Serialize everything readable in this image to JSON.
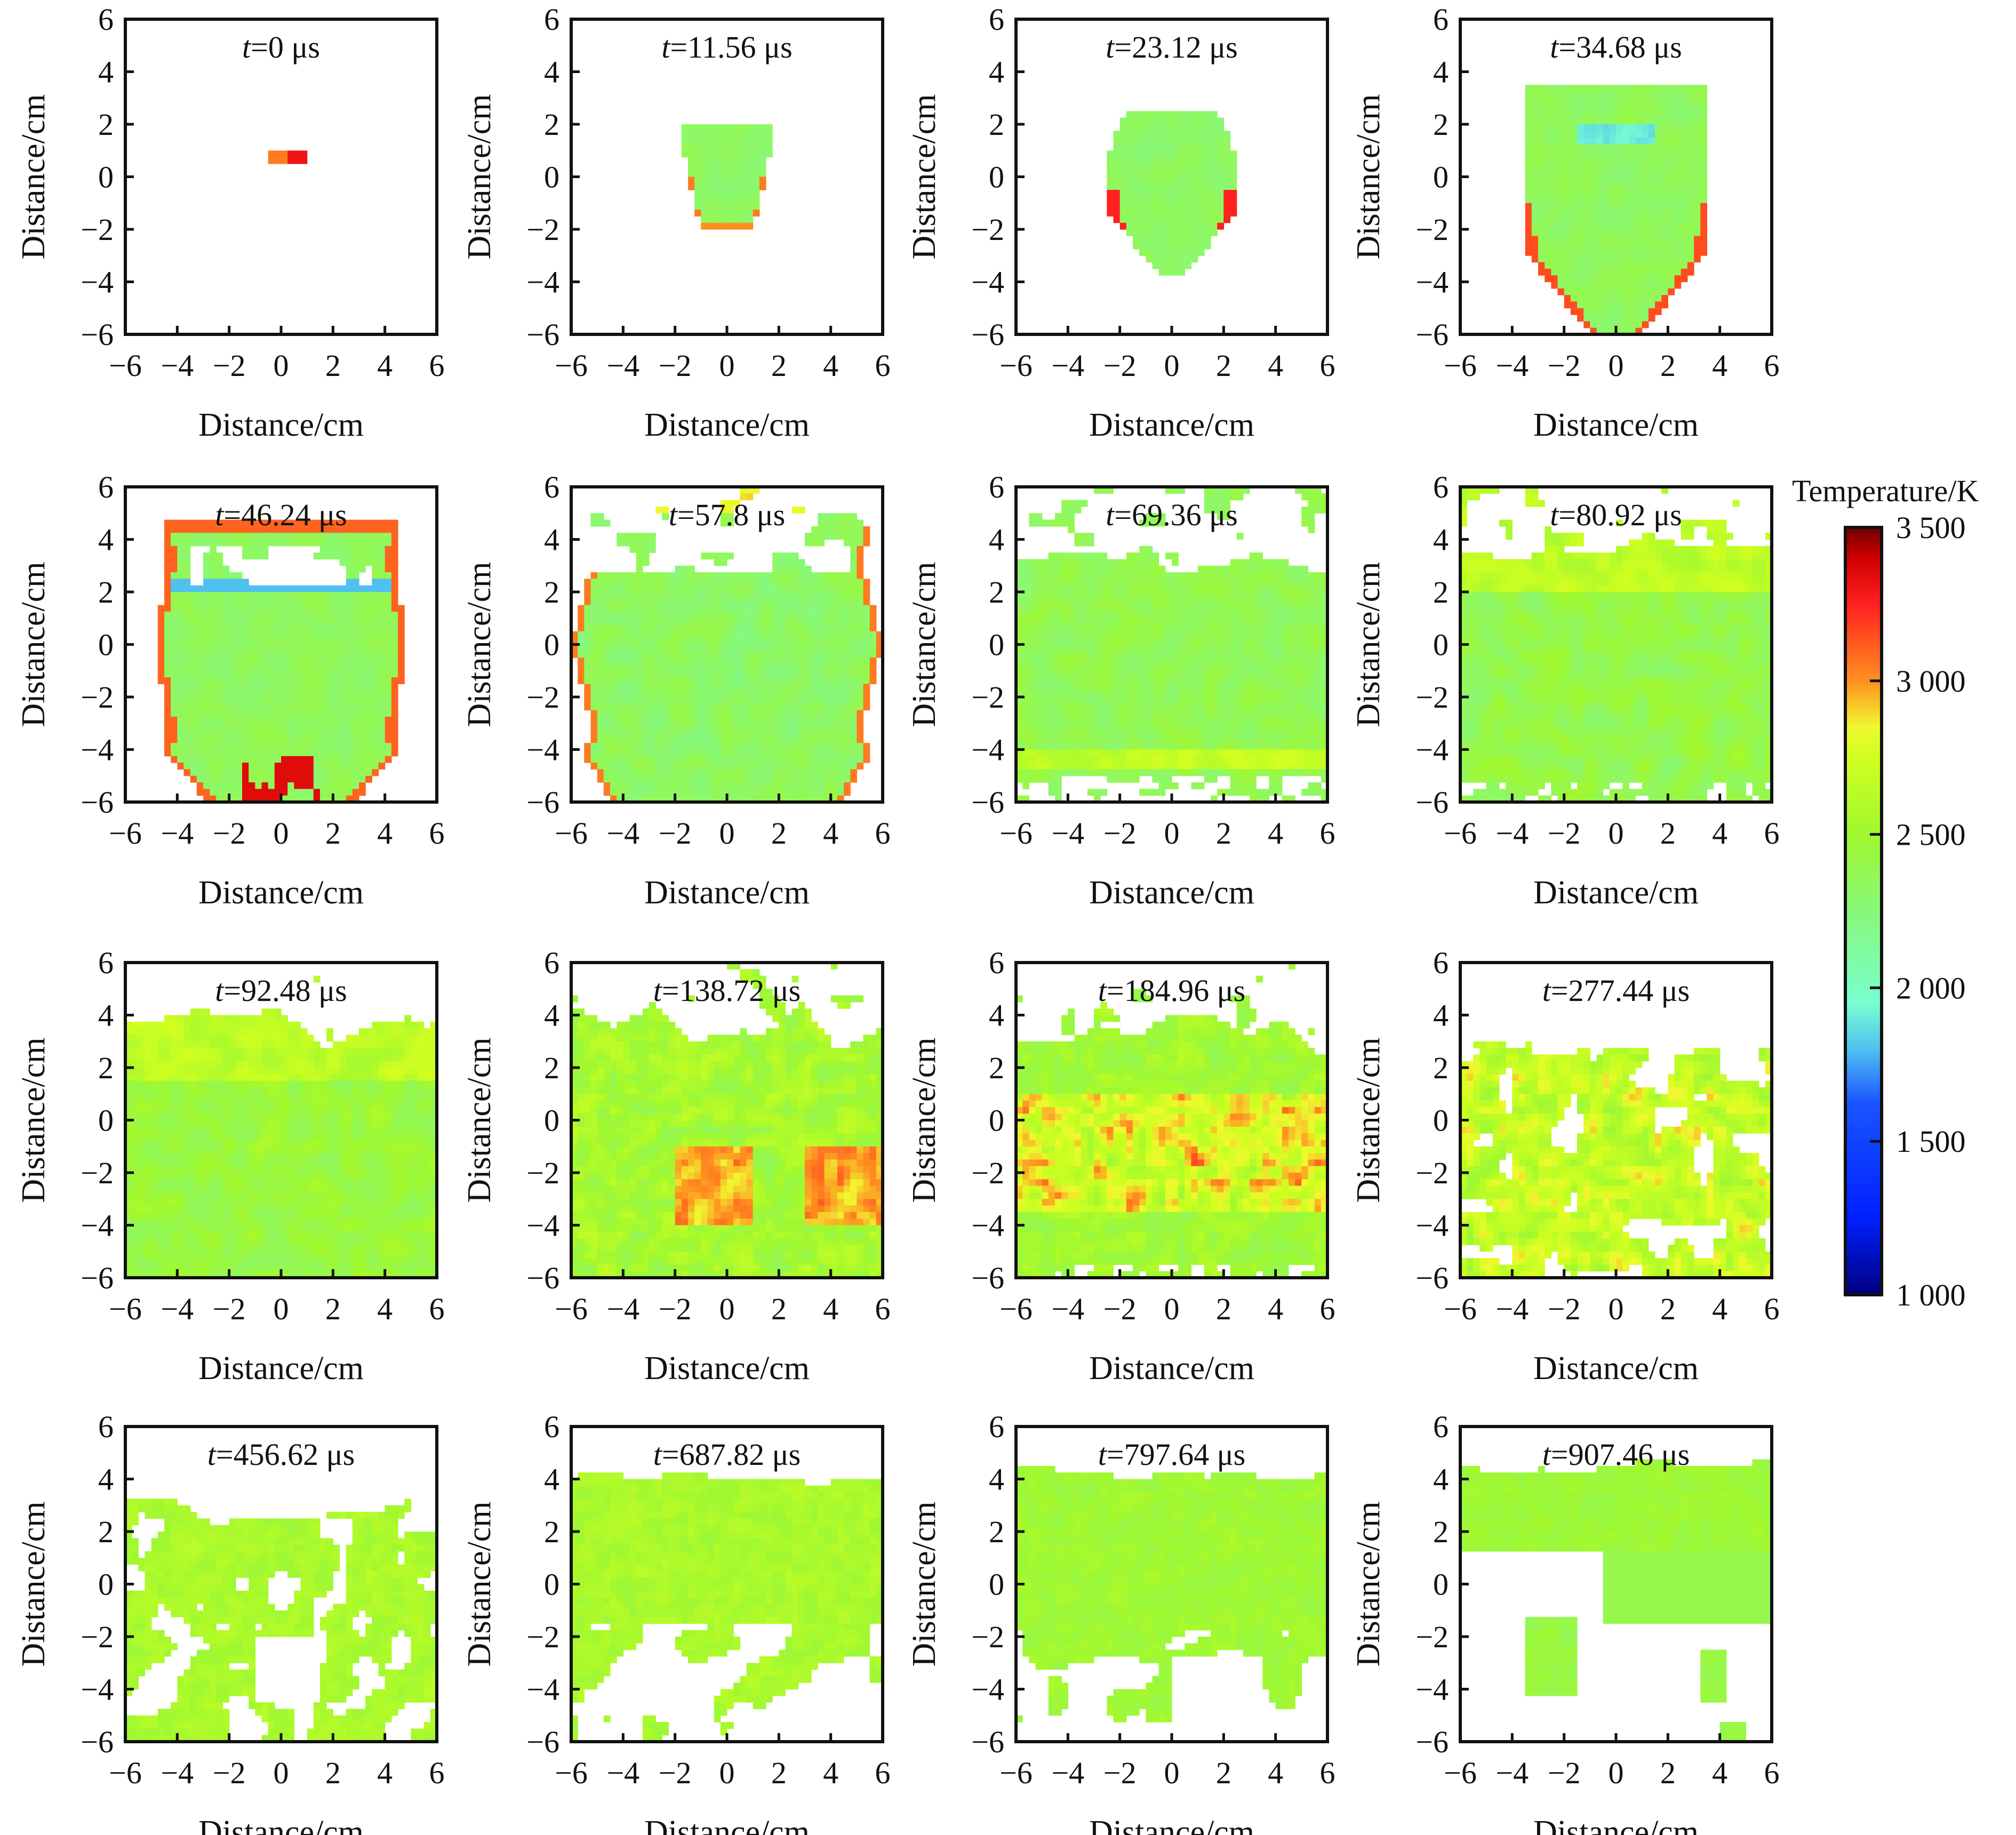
{
  "chart_data": {
    "type": "heatmap",
    "title": "",
    "xlabel": "Distance/cm",
    "ylabel": "Distance/cm",
    "xlim": [
      -6,
      6
    ],
    "ylim": [
      -6,
      6
    ],
    "xticks": [
      "−6",
      "−4",
      "−2",
      "0",
      "2",
      "4",
      "6"
    ],
    "yticks": [
      "6",
      "4",
      "2",
      "0",
      "−2",
      "−4",
      "−6"
    ],
    "panels": [
      {
        "t_var": "t",
        "t_rest": "=0 μs"
      },
      {
        "t_var": "t",
        "t_rest": "=11.56 μs"
      },
      {
        "t_var": "t",
        "t_rest": "=23.12 μs"
      },
      {
        "t_var": "t",
        "t_rest": "=34.68 μs"
      },
      {
        "t_var": "t",
        "t_rest": "=46.24 μs"
      },
      {
        "t_var": "t",
        "t_rest": "=57.8 μs"
      },
      {
        "t_var": "t",
        "t_rest": "=69.36 μs"
      },
      {
        "t_var": "t",
        "t_rest": "=80.92 μs"
      },
      {
        "t_var": "t",
        "t_rest": "=92.48 μs"
      },
      {
        "t_var": "t",
        "t_rest": "=138.72 μs"
      },
      {
        "t_var": "t",
        "t_rest": "=184.96 μs"
      },
      {
        "t_var": "t",
        "t_rest": "=277.44 μs"
      },
      {
        "t_var": "t",
        "t_rest": "=456.62 μs"
      },
      {
        "t_var": "t",
        "t_rest": "=687.82 μs"
      },
      {
        "t_var": "t",
        "t_rest": "=797.64 μs"
      },
      {
        "t_var": "t",
        "t_rest": "=907.46 μs"
      }
    ],
    "colorbar": {
      "label": "Temperature/K",
      "range": [
        1000,
        3500
      ],
      "ticks": [
        "3 500",
        "3 000",
        "2 500",
        "2 000",
        "1 500",
        "1 000"
      ],
      "colormap": "jet"
    }
  }
}
